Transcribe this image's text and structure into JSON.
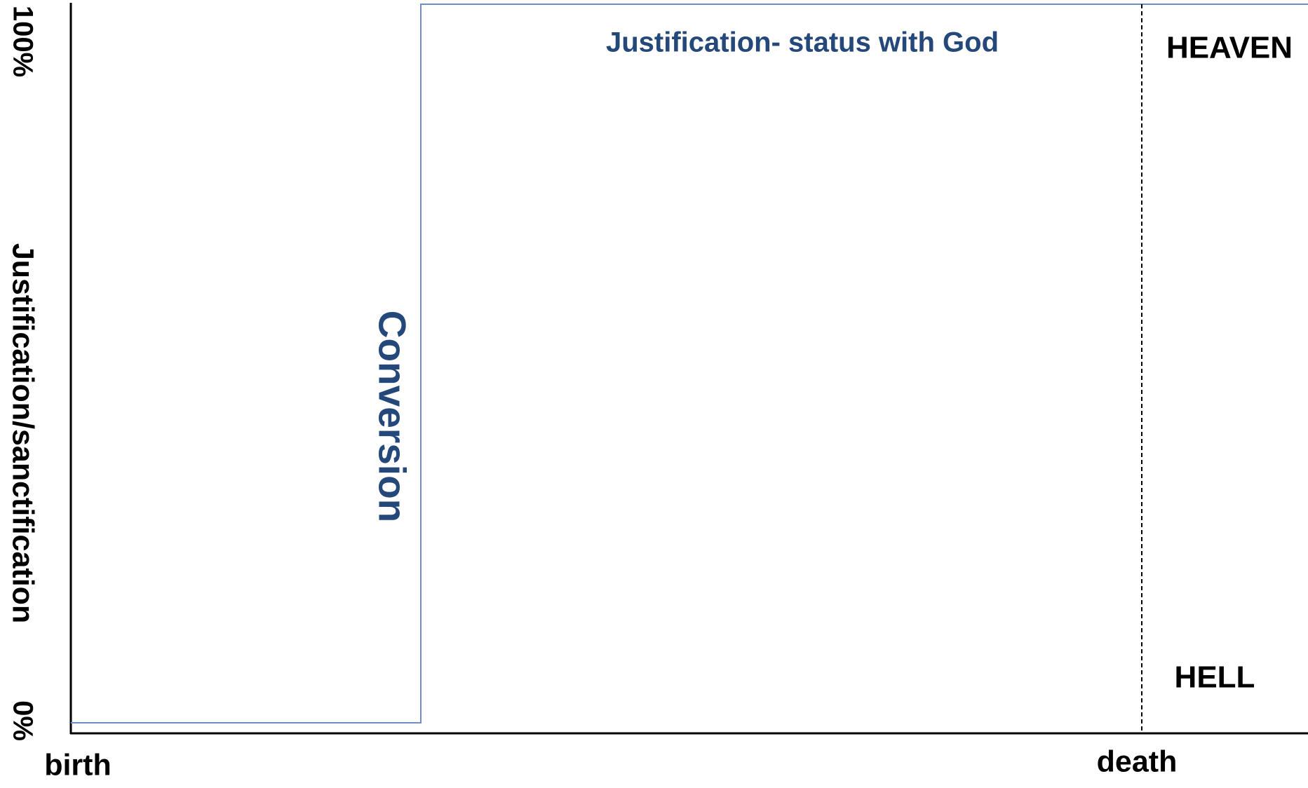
{
  "axes": {
    "y_top": "100%",
    "y_bottom": "0%",
    "y_label": "Justification/sanctification",
    "x_start": "birth",
    "x_end": "death"
  },
  "labels": {
    "justification": "Justification- status with God",
    "conversion": "Conversion",
    "heaven": "HEAVEN",
    "hell": "HELL"
  }
}
